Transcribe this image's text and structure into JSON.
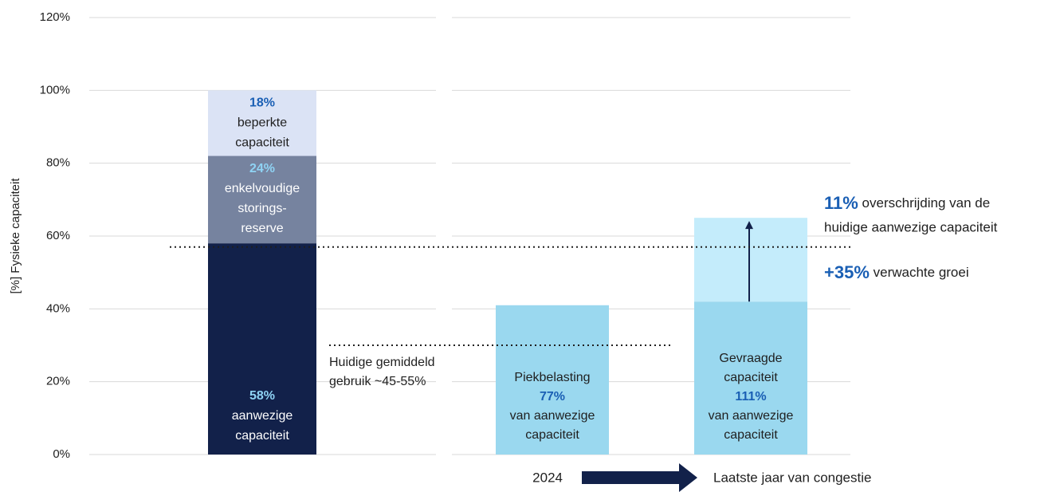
{
  "chart_data": {
    "type": "bar",
    "y_label": "[%] Fysieke capaciteit",
    "ylim": [
      0,
      120
    ],
    "yticks": [
      {
        "value": 0,
        "label": "0%"
      },
      {
        "value": 20,
        "label": "20%"
      },
      {
        "value": 40,
        "label": "40%"
      },
      {
        "value": 60,
        "label": "60%"
      },
      {
        "value": 80,
        "label": "80%"
      },
      {
        "value": 100,
        "label": "100%"
      },
      {
        "value": 120,
        "label": "120%"
      }
    ],
    "grid": true,
    "categories": [
      null,
      null,
      null
    ],
    "bars": [
      {
        "segments": [
          {
            "value": 58,
            "value_label": "58%",
            "color": "#12214a",
            "text_color": "#ffffff",
            "label_color": "#8fd3f4",
            "lines": [
              "aanwezige",
              "capaciteit"
            ]
          },
          {
            "value": 24,
            "value_label": "24%",
            "color": "#76839f",
            "text_color": "#ffffff",
            "label_color": "#8fd3f4",
            "lines": [
              "enkelvoudige",
              "storings-",
              "reserve"
            ]
          },
          {
            "value": 18,
            "value_label": "18%",
            "color": "#dbe3f5",
            "text_color": "#1f1f1f",
            "label_color": "#1a5fb4",
            "lines": [
              "beperkte",
              "capaciteit"
            ]
          }
        ]
      },
      {
        "segments": [
          {
            "value": 41,
            "color": "#9ad8ef",
            "text": [
              "Piekbelasting",
              "77%",
              "van aanwezige",
              "capaciteit"
            ]
          }
        ]
      },
      {
        "segments": [
          {
            "value": 42,
            "color": "#9ad8ef",
            "text": [
              "Gevraagde",
              "capaciteit",
              "111%",
              "van aanwezige",
              "capaciteit"
            ]
          },
          {
            "value": 23,
            "color": "#c4ecfb"
          }
        ]
      }
    ],
    "reference_lines": [
      {
        "value": 57
      },
      {
        "value": 30,
        "text": [
          "Huidige gemiddeld",
          "gebruik ~45-55%"
        ]
      }
    ],
    "annotations": {
      "overshoot_pct": "11%",
      "overshoot_text": " overschrijding van de",
      "overshoot_text2": "huidige aanwezige capaciteit",
      "growth_pct": "+35%",
      "growth_text": " verwachte groei",
      "start": "2024",
      "end": "Laatste jaar van congestie"
    }
  }
}
